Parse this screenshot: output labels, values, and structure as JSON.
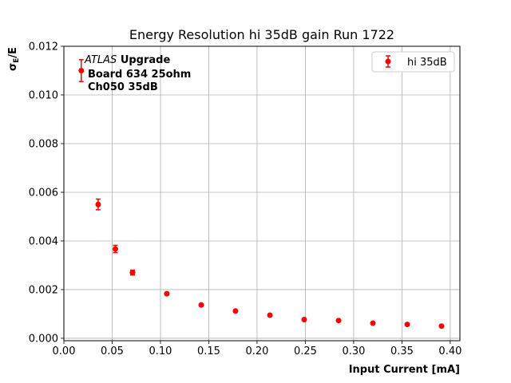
{
  "chart_data": {
    "type": "scatter",
    "title": "Energy Resolution hi 35dB gain Run 1722",
    "xlabel": "Input Current [mA]",
    "ylabel_main": "σ",
    "ylabel_sub": "E",
    "ylabel_tail": "/E",
    "xlim": [
      0.0,
      0.41
    ],
    "ylim": [
      -0.0001,
      0.012
    ],
    "xticks": [
      0.0,
      0.05,
      0.1,
      0.15,
      0.2,
      0.25,
      0.3,
      0.35,
      0.4
    ],
    "xtick_labels": [
      "0.00",
      "0.05",
      "0.10",
      "0.15",
      "0.20",
      "0.25",
      "0.30",
      "0.35",
      "0.40"
    ],
    "yticks": [
      0.0,
      0.002,
      0.004,
      0.006,
      0.008,
      0.01,
      0.012
    ],
    "ytick_labels": [
      "0.000",
      "0.002",
      "0.004",
      "0.006",
      "0.008",
      "0.010",
      "0.012"
    ],
    "grid": true,
    "legend_position": "top-right",
    "series": [
      {
        "name": "hi 35dB",
        "color": "#ff0000",
        "x": [
          0.0355,
          0.0533,
          0.0711,
          0.1066,
          0.1422,
          0.1777,
          0.2133,
          0.2488,
          0.2844,
          0.3199,
          0.3555,
          0.391
        ],
        "y": [
          0.0055,
          0.00367,
          0.0027,
          0.00183,
          0.00137,
          0.00112,
          0.00095,
          0.00077,
          0.00073,
          0.00062,
          0.00057,
          0.0005
        ],
        "yerr": [
          0.00022,
          0.00015,
          0.0001,
          5e-05,
          4e-05,
          4e-05,
          3e-05,
          3e-05,
          3e-05,
          2e-05,
          2e-05,
          2e-05
        ]
      }
    ],
    "annotation": {
      "marker_x": 0.018,
      "marker_y": 0.011,
      "marker_yerr": 0.00045,
      "line1_italic": "ATLAS",
      "line1_bold": "Upgrade",
      "line2": "Board 634 25ohm",
      "line3": "Ch050 35dB"
    }
  }
}
